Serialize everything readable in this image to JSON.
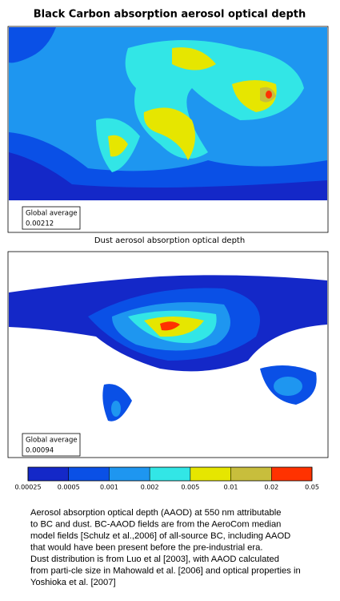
{
  "title": "Black Carbon absorption aerosol optical depth",
  "panels": [
    {
      "label": null,
      "average_label": "Global average",
      "average_value": "0.00212"
    },
    {
      "label": "Dust aerosol absorption optical depth",
      "average_label": "Global average",
      "average_value": "0.00094"
    }
  ],
  "colorbar": {
    "ticks": [
      "0.00025",
      "0.0005",
      "0.001",
      "0.002",
      "0.005",
      "0.01",
      "0.02",
      "0.05"
    ],
    "colors": [
      "#1428c8",
      "#0a50e6",
      "#1e96f0",
      "#32e6e6",
      "#e6e600",
      "#c8be3c",
      "#ff3200"
    ]
  },
  "caption": [
    "Aerosol absorption optical depth (AAOD) at 550 nm attributable",
    "to BC and dust. BC-AAOD fields are from the AeroCom median",
    "model fields [Schulz et al.,2006] of all-source BC, including AAOD",
    "that would have been present before the pre-industrial era.",
    "Dust distribution is from Luo et al [2003], with AAOD calculated",
    "from parti-cle size in Mahowald et al. [2006] and optical properties in",
    "Yoshioka et al. [2007]"
  ]
}
